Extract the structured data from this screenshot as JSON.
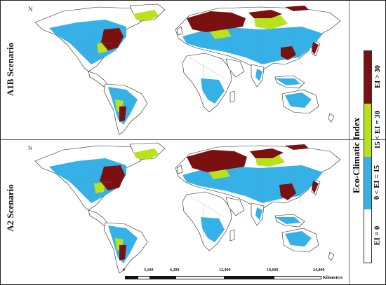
{
  "scenarios": [
    {
      "label": "A1B Scenario"
    },
    {
      "label": "A2 Scenario"
    }
  ],
  "legend": {
    "title": "Eco-Climatic Index",
    "classes": [
      {
        "label": "EI > 30",
        "color": "#7b1010"
      },
      {
        "label": "15 < EI = 30",
        "color": "#b8e21a"
      },
      {
        "label": "0 < EI = 15",
        "color": "#35b1e7"
      },
      {
        "label": "EI = 0",
        "color": "#ffffff"
      }
    ]
  },
  "scalebar": {
    "ticks": [
      "0",
      "3,100",
      "6,200",
      "12,400",
      "18,600",
      "24,800"
    ],
    "unit": "Kilometers"
  },
  "colors": {
    "land_outline": "#222222",
    "ocean": "#ffffff"
  }
}
